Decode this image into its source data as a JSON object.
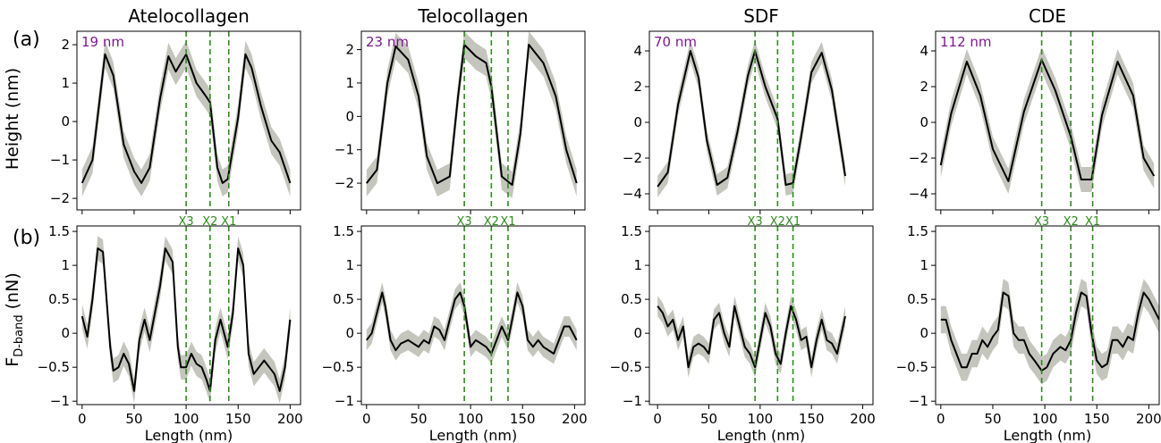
{
  "figure": {
    "panel_labels": [
      "(a)",
      "(b)"
    ],
    "row_a_ylabel": "Height (nm)",
    "row_b_ylabel_main": "F",
    "row_b_ylabel_sub": "D-band",
    "row_b_ylabel_unit": " (nN)",
    "xlabel": "Length (nm)",
    "colors": {
      "line": "#000000",
      "band": "#c4c6bd",
      "marker": "#2e8b1e",
      "period": "#7a1a8c"
    }
  },
  "chart_data": [
    {
      "type": "line",
      "column": 0,
      "row": "a",
      "title": "Atelocollagen",
      "period_label": "19 nm",
      "xlim": [
        -5,
        210
      ],
      "ylim": [
        -2.3,
        2.35
      ],
      "xticks": [
        0,
        50,
        100,
        150,
        200
      ],
      "yticks": [
        -2,
        -1,
        0,
        1,
        2
      ],
      "markers": [
        {
          "x": 100,
          "label": "X3"
        },
        {
          "x": 123,
          "label": "X2"
        },
        {
          "x": 141,
          "label": "X1"
        }
      ],
      "x": [
        0,
        10,
        17,
        22,
        30,
        40,
        50,
        57,
        65,
        75,
        83,
        90,
        100,
        110,
        118,
        123,
        130,
        135,
        140,
        150,
        157,
        163,
        172,
        182,
        190,
        200
      ],
      "y": [
        -1.6,
        -1.0,
        0.6,
        1.75,
        1.2,
        -0.6,
        -1.3,
        -1.6,
        -1.2,
        0.6,
        1.7,
        1.3,
        1.75,
        1.0,
        0.7,
        0.5,
        -1.2,
        -1.6,
        -1.5,
        0.1,
        1.75,
        1.4,
        0.4,
        -0.5,
        -0.8,
        -1.6
      ],
      "band": 0.35
    },
    {
      "type": "line",
      "column": 1,
      "row": "a",
      "title": "Telocollagen",
      "period_label": "23 nm",
      "xlim": [
        -5,
        210
      ],
      "ylim": [
        -2.8,
        2.55
      ],
      "xticks": [
        0,
        50,
        100,
        150,
        200
      ],
      "yticks": [
        -2,
        -1,
        0,
        1,
        2
      ],
      "markers": [
        {
          "x": 94,
          "label": "X3"
        },
        {
          "x": 120,
          "label": "X2"
        },
        {
          "x": 136,
          "label": "X1"
        }
      ],
      "x": [
        0,
        10,
        20,
        28,
        40,
        50,
        58,
        68,
        80,
        88,
        94,
        105,
        115,
        120,
        130,
        140,
        148,
        156,
        170,
        182,
        192,
        202
      ],
      "y": [
        -2.0,
        -1.6,
        1.0,
        2.1,
        1.7,
        0.6,
        -1.2,
        -2.0,
        -1.8,
        0.6,
        2.15,
        1.8,
        1.6,
        0.9,
        -1.8,
        -2.05,
        -0.5,
        2.15,
        1.6,
        0.6,
        -1.0,
        -2.0
      ],
      "band": 0.4
    },
    {
      "type": "line",
      "column": 2,
      "row": "a",
      "title": "SDF",
      "period_label": "70 nm",
      "xlim": [
        -8,
        210
      ],
      "ylim": [
        -4.9,
        5.1
      ],
      "xticks": [
        0,
        50,
        100,
        150,
        200
      ],
      "yticks": [
        -4,
        -2,
        0,
        2,
        4
      ],
      "markers": [
        {
          "x": 95,
          "label": "X3"
        },
        {
          "x": 117,
          "label": "X2"
        },
        {
          "x": 132,
          "label": "X1"
        }
      ],
      "x": [
        0,
        10,
        20,
        32,
        40,
        48,
        58,
        68,
        78,
        88,
        95,
        105,
        117,
        125,
        132,
        140,
        150,
        160,
        170,
        183
      ],
      "y": [
        -3.6,
        -2.8,
        1.0,
        4.0,
        2.5,
        -1.0,
        -3.5,
        -3.1,
        -0.5,
        2.6,
        4.0,
        2.0,
        0.2,
        -3.5,
        -3.4,
        -0.8,
        2.8,
        3.9,
        1.8,
        -3.0
      ],
      "band": 0.6
    },
    {
      "type": "line",
      "column": 3,
      "row": "a",
      "title": "CDE",
      "period_label": "112 nm",
      "xlim": [
        -5,
        210
      ],
      "ylim": [
        -4.9,
        5.1
      ],
      "xticks": [
        0,
        50,
        100,
        150,
        200
      ],
      "yticks": [
        -4,
        -2,
        0,
        2,
        4
      ],
      "markers": [
        {
          "x": 97,
          "label": "X3"
        },
        {
          "x": 125,
          "label": "X2"
        },
        {
          "x": 146,
          "label": "X1"
        }
      ],
      "x": [
        0,
        10,
        25,
        38,
        50,
        65,
        80,
        97,
        110,
        125,
        135,
        145,
        155,
        170,
        185,
        195,
        205
      ],
      "y": [
        -2.4,
        0.5,
        3.4,
        1.5,
        -1.5,
        -3.3,
        0.6,
        3.5,
        1.8,
        -0.8,
        -3.2,
        -3.2,
        0.4,
        3.4,
        1.5,
        -2.0,
        -3.0
      ],
      "band": 0.7
    },
    {
      "type": "line",
      "column": 0,
      "row": "b",
      "title": "",
      "period_label": "",
      "xlim": [
        -5,
        210
      ],
      "ylim": [
        -1.05,
        1.58
      ],
      "xticks": [
        0,
        50,
        100,
        150,
        200
      ],
      "yticks": [
        -1.0,
        -0.5,
        0.0,
        0.5,
        1.0,
        1.5
      ],
      "markers": [
        {
          "x": 100,
          "label": ""
        },
        {
          "x": 123,
          "label": ""
        },
        {
          "x": 141,
          "label": ""
        }
      ],
      "x": [
        0,
        5,
        10,
        15,
        20,
        27,
        30,
        35,
        40,
        45,
        50,
        55,
        60,
        65,
        70,
        75,
        80,
        87,
        92,
        95,
        100,
        105,
        110,
        115,
        120,
        123,
        128,
        133,
        140,
        145,
        150,
        155,
        160,
        165,
        170,
        175,
        180,
        185,
        190,
        195,
        200
      ],
      "y": [
        0.25,
        -0.05,
        0.5,
        1.25,
        1.2,
        -0.2,
        -0.55,
        -0.5,
        -0.3,
        -0.45,
        -0.85,
        -0.1,
        0.2,
        -0.1,
        0.3,
        0.7,
        1.25,
        1.05,
        -0.2,
        -0.5,
        -0.5,
        -0.3,
        -0.45,
        -0.5,
        -0.7,
        -0.85,
        -0.1,
        0.2,
        -0.2,
        0.3,
        1.25,
        1.0,
        -0.3,
        -0.6,
        -0.5,
        -0.4,
        -0.5,
        -0.6,
        -0.85,
        -0.5,
        0.2
      ],
      "band": 0.18
    },
    {
      "type": "line",
      "column": 1,
      "row": "b",
      "title": "",
      "period_label": "",
      "xlim": [
        -5,
        210
      ],
      "ylim": [
        -1.05,
        1.58
      ],
      "xticks": [
        0,
        50,
        100,
        150,
        200
      ],
      "yticks": [
        -1.0,
        -0.5,
        0.0,
        0.5,
        1.0,
        1.5
      ],
      "markers": [
        {
          "x": 94,
          "label": ""
        },
        {
          "x": 120,
          "label": ""
        },
        {
          "x": 136,
          "label": ""
        }
      ],
      "x": [
        0,
        5,
        10,
        15,
        18,
        23,
        28,
        33,
        40,
        50,
        55,
        60,
        65,
        70,
        75,
        80,
        85,
        90,
        94,
        100,
        105,
        110,
        115,
        120,
        125,
        130,
        136,
        140,
        145,
        150,
        155,
        160,
        165,
        170,
        175,
        180,
        185,
        190,
        195,
        202
      ],
      "y": [
        -0.1,
        0.0,
        0.3,
        0.6,
        0.4,
        -0.1,
        -0.25,
        -0.15,
        -0.1,
        -0.2,
        -0.1,
        -0.15,
        0.1,
        0.05,
        -0.1,
        0.2,
        0.5,
        0.6,
        0.4,
        -0.2,
        -0.1,
        -0.15,
        -0.2,
        -0.3,
        -0.1,
        0.1,
        -0.1,
        0.2,
        0.6,
        0.4,
        -0.1,
        -0.2,
        -0.1,
        -0.2,
        -0.25,
        -0.3,
        -0.1,
        0.1,
        0.1,
        -0.1
      ],
      "band": 0.15
    },
    {
      "type": "line",
      "column": 2,
      "row": "b",
      "title": "",
      "period_label": "",
      "xlim": [
        -8,
        210
      ],
      "ylim": [
        -1.05,
        1.58
      ],
      "xticks": [
        0,
        50,
        100,
        150,
        200
      ],
      "yticks": [
        -1.0,
        -0.5,
        0.0,
        0.5,
        1.0,
        1.5
      ],
      "markers": [
        {
          "x": 95,
          "label": ""
        },
        {
          "x": 117,
          "label": ""
        },
        {
          "x": 132,
          "label": ""
        }
      ],
      "x": [
        0,
        5,
        10,
        15,
        20,
        25,
        30,
        35,
        40,
        45,
        50,
        55,
        60,
        65,
        70,
        75,
        80,
        85,
        90,
        95,
        100,
        105,
        110,
        115,
        120,
        125,
        130,
        135,
        140,
        145,
        150,
        155,
        160,
        165,
        170,
        175,
        183
      ],
      "y": [
        0.4,
        0.3,
        0.1,
        0.2,
        -0.1,
        0.1,
        -0.5,
        -0.2,
        -0.15,
        -0.2,
        -0.3,
        0.2,
        0.3,
        0.0,
        -0.2,
        0.4,
        0.1,
        -0.2,
        -0.3,
        -0.5,
        -0.1,
        0.3,
        0.1,
        -0.3,
        -0.45,
        0.0,
        0.4,
        0.2,
        -0.1,
        -0.05,
        -0.5,
        -0.1,
        0.2,
        -0.1,
        -0.15,
        -0.3,
        0.25
      ],
      "band": 0.15
    },
    {
      "type": "line",
      "column": 3,
      "row": "b",
      "title": "",
      "period_label": "",
      "xlim": [
        -5,
        210
      ],
      "ylim": [
        -1.05,
        1.58
      ],
      "xticks": [
        0,
        50,
        100,
        150,
        200
      ],
      "yticks": [
        -1.0,
        -0.5,
        0.0,
        0.5,
        1.0,
        1.5
      ],
      "markers": [
        {
          "x": 97,
          "label": ""
        },
        {
          "x": 125,
          "label": ""
        },
        {
          "x": 146,
          "label": ""
        }
      ],
      "x": [
        0,
        5,
        10,
        15,
        20,
        25,
        30,
        35,
        40,
        45,
        50,
        55,
        60,
        65,
        70,
        75,
        80,
        85,
        90,
        97,
        102,
        108,
        115,
        120,
        125,
        130,
        135,
        140,
        145,
        150,
        155,
        160,
        165,
        170,
        175,
        180,
        185,
        190,
        195,
        200,
        210
      ],
      "y": [
        0.2,
        0.2,
        -0.1,
        -0.3,
        -0.5,
        -0.5,
        -0.3,
        -0.3,
        -0.1,
        -0.2,
        -0.05,
        0.05,
        0.6,
        0.55,
        0.0,
        -0.1,
        -0.1,
        -0.3,
        -0.4,
        -0.55,
        -0.5,
        -0.3,
        -0.2,
        -0.25,
        -0.1,
        0.3,
        0.6,
        0.55,
        0.0,
        -0.4,
        -0.5,
        -0.45,
        -0.1,
        -0.1,
        -0.2,
        -0.05,
        -0.1,
        0.3,
        0.6,
        0.5,
        0.2
      ],
      "band": 0.2
    }
  ]
}
